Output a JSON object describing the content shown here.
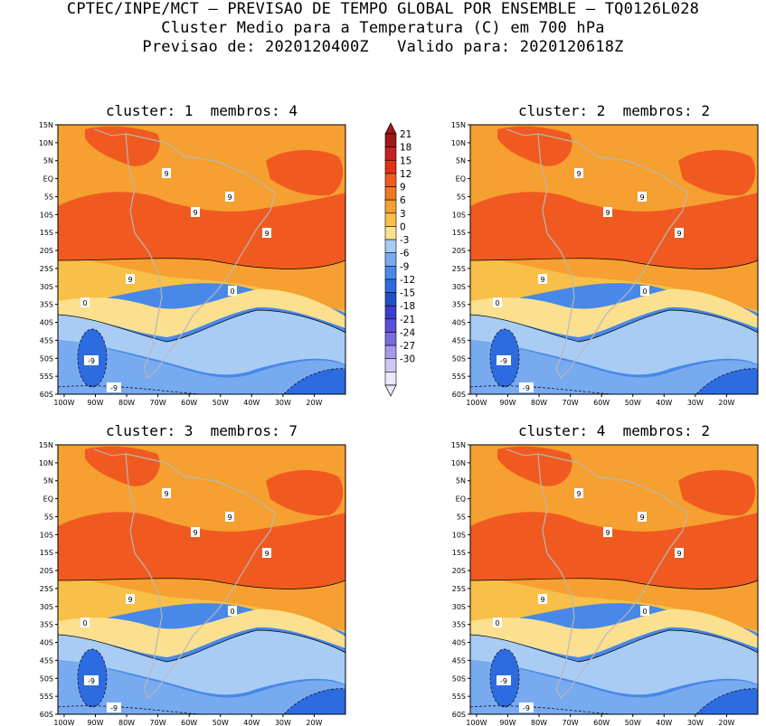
{
  "header": {
    "line1": "CPTEC/INPE/MCT — PREVISAO DE TEMPO GLOBAL POR ENSEMBLE — TQ0126L028",
    "line2": "Cluster Medio para a Temperatura (C) em 700 hPa",
    "line3": "Previsao de: 2020120400Z   Valido para: 2020120618Z"
  },
  "panels": [
    {
      "title": "cluster: 1  membros: 4"
    },
    {
      "title": "cluster: 2  membros: 2"
    },
    {
      "title": "cluster: 3  membros: 7"
    },
    {
      "title": "cluster: 4  membros: 2"
    }
  ],
  "axes": {
    "lat_labels": [
      "15N",
      "10N",
      "5N",
      "EQ",
      "5S",
      "10S",
      "15S",
      "20S",
      "25S",
      "30S",
      "35S",
      "40S",
      "45S",
      "50S",
      "55S",
      "60S"
    ],
    "lon_labels": [
      "100W",
      "90W",
      "80W",
      "70W",
      "60W",
      "50W",
      "40W",
      "30W",
      "20W"
    ]
  },
  "colorbar": {
    "labels": [
      "21",
      "18",
      "15",
      "12",
      "9",
      "6",
      "3",
      "0",
      "-3",
      "-6",
      "-9",
      "-12",
      "-15",
      "-18",
      "-21",
      "-24",
      "-27",
      "-30"
    ],
    "colors": [
      "#a01818",
      "#c62020",
      "#e03218",
      "#f05a20",
      "#f07820",
      "#f5a030",
      "#f8c048",
      "#fbe090",
      "#a8ccf4",
      "#78aaf0",
      "#4888e8",
      "#2c6ce0",
      "#2050c8",
      "#3c3ccc",
      "#5a50d8",
      "#7a6ae0",
      "#a898ea",
      "#cfc8f4",
      "#ece8fa"
    ]
  },
  "contour_labels": {
    "warm": "9",
    "zero": "0",
    "cold": "-9"
  }
}
